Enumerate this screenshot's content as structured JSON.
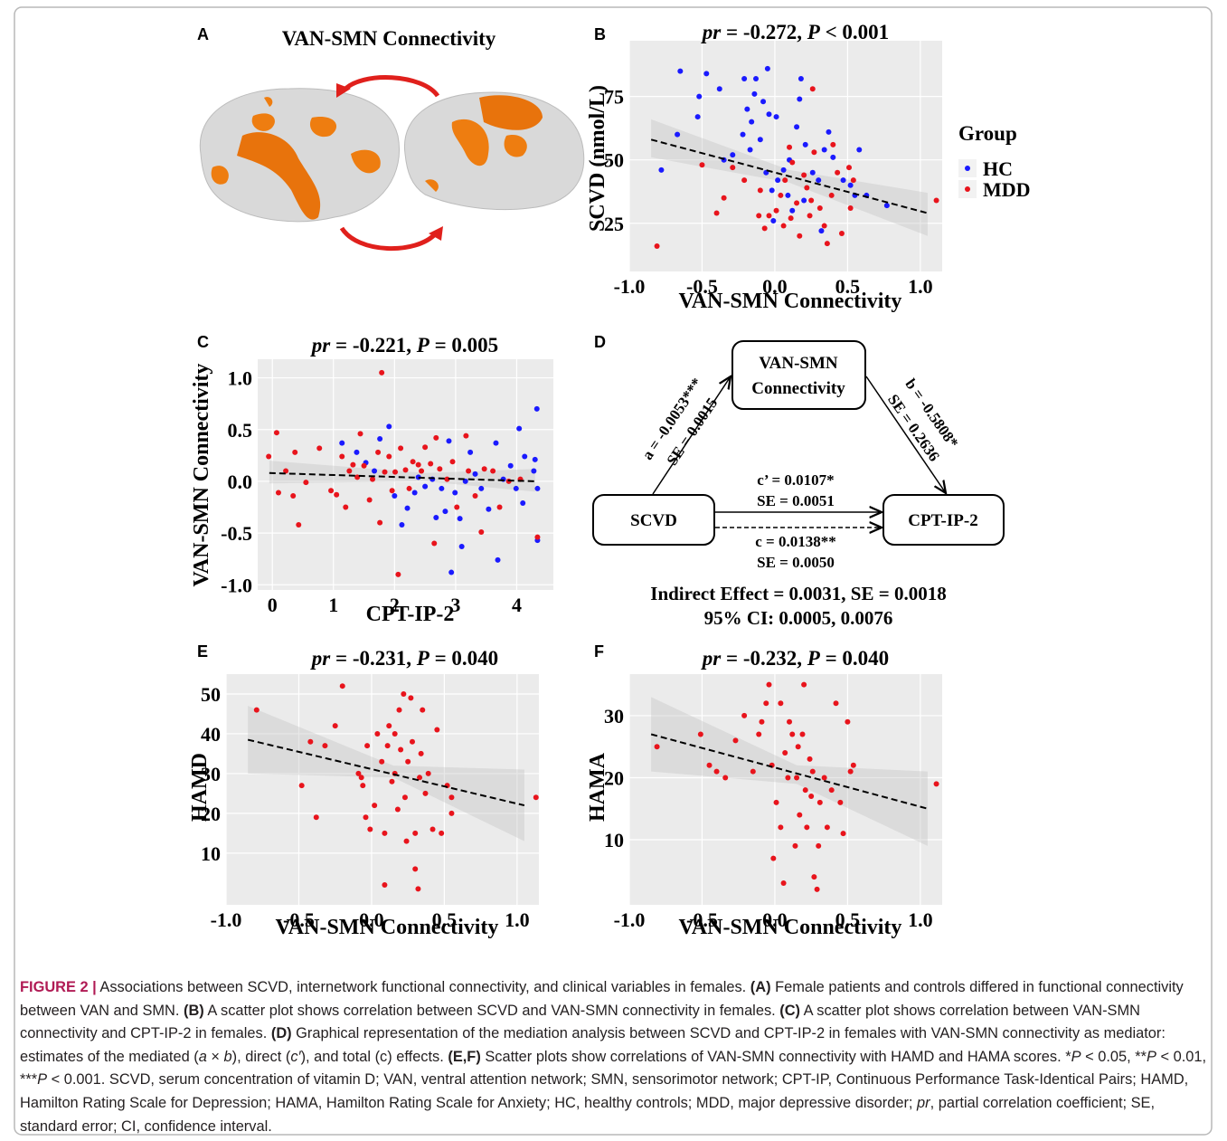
{
  "panel_a": {
    "panel": "A",
    "title": "VAN-SMN Connectivity"
  },
  "chart_data": [
    {
      "type": "scatter",
      "panel": "B",
      "title": [
        {
          "text": "pr",
          "italic": true
        },
        {
          "text": " = -0.272, "
        },
        {
          "text": "P",
          "italic": true
        },
        {
          "text": " < 0.001"
        }
      ],
      "xlabel": "VAN-SMN Connectivity",
      "ylabel": "SCVD (nmol/L)",
      "xlim": [
        -1,
        1.15
      ],
      "ylim": [
        6,
        97
      ],
      "xticks": [
        {
          "value": -1,
          "label": "-1.0"
        },
        {
          "value": -0.5,
          "label": "-0.5"
        },
        {
          "value": 0,
          "label": "0.0"
        },
        {
          "value": 0.5,
          "label": "0.5"
        },
        {
          "value": 1,
          "label": "1.0"
        }
      ],
      "yticks": [
        25,
        50,
        75
      ],
      "grid": true,
      "legend": {
        "title": "Group",
        "position": "right"
      },
      "series": [
        {
          "name": "HC",
          "color": "#1a1aff",
          "x": [
            -0.65,
            -0.47,
            -0.38,
            -0.52,
            -0.53,
            -0.67,
            -0.78,
            -0.21,
            -0.13,
            -0.05,
            -0.14,
            -0.08,
            -0.19,
            -0.16,
            -0.04,
            0.01,
            -0.22,
            -0.29,
            -0.35,
            -0.17,
            -0.1,
            -0.06,
            0.06,
            -0.02,
            -0.01,
            0.18,
            0.17,
            0.15,
            0.1,
            0.21,
            0.26,
            0.3,
            0.34,
            0.37,
            0.4,
            0.47,
            0.52,
            0.58,
            0.55,
            0.63,
            0.77,
            0.2,
            0.32,
            0.09,
            0.12,
            0.02
          ],
          "y": [
            85,
            84,
            78,
            75,
            67,
            60,
            46,
            82,
            82,
            86,
            76,
            73,
            70,
            65,
            68,
            67,
            60,
            52,
            50,
            54,
            58,
            45,
            46,
            38,
            26,
            82,
            74,
            63,
            50,
            56,
            45,
            42,
            54,
            61,
            51,
            42,
            40,
            54,
            36,
            36,
            32,
            34,
            22,
            36,
            30,
            42
          ]
        },
        {
          "name": "MDD",
          "color": "#e8141c",
          "x": [
            -0.81,
            -0.5,
            -0.4,
            -0.35,
            -0.29,
            -0.21,
            -0.1,
            -0.07,
            -0.04,
            0.01,
            0.04,
            0.07,
            0.1,
            0.12,
            0.15,
            0.17,
            0.2,
            0.22,
            0.24,
            0.26,
            0.27,
            0.31,
            0.34,
            0.39,
            0.4,
            0.43,
            0.46,
            0.51,
            0.54,
            0.52,
            1.11,
            0.06,
            0.11,
            0.25,
            0.36,
            -0.11
          ],
          "y": [
            16,
            48,
            29,
            35,
            47,
            42,
            38,
            23,
            28,
            30,
            36,
            42,
            55,
            49,
            33,
            20,
            44,
            39,
            28,
            78,
            53,
            31,
            24,
            36,
            56,
            45,
            21,
            47,
            42,
            31,
            34,
            24,
            27,
            34,
            17,
            28
          ]
        }
      ],
      "fit": {
        "x": [
          -0.85,
          1.05
        ],
        "y": [
          58,
          29
        ]
      },
      "band": {
        "x": [
          -0.85,
          0.1,
          1.05
        ],
        "lower": [
          51,
          41,
          20
        ],
        "upper": [
          66,
          46,
          37
        ]
      }
    },
    {
      "type": "scatter",
      "panel": "C",
      "title": [
        {
          "text": "pr",
          "italic": true
        },
        {
          "text": " = -0.221, "
        },
        {
          "text": "P",
          "italic": true
        },
        {
          "text": " = 0.005"
        }
      ],
      "xlabel": "CPT-IP-2",
      "ylabel": "VAN-SMN Connectivity",
      "xlim": [
        -0.24,
        4.6
      ],
      "ylim": [
        -1.05,
        1.18
      ],
      "xticks": [
        0,
        1,
        2,
        3,
        4
      ],
      "yticks": [
        {
          "value": -1,
          "label": "-1.0"
        },
        {
          "value": -0.5,
          "label": "-0.5"
        },
        {
          "value": 0,
          "label": "0.0"
        },
        {
          "value": 0.5,
          "label": "0.5"
        },
        {
          "value": 1,
          "label": "1.0"
        }
      ],
      "grid": true,
      "series": [
        {
          "color": "#1a1aff",
          "x": [
            1.14,
            1.38,
            1.53,
            1.67,
            1.76,
            1.91,
            2.0,
            2.12,
            2.21,
            2.33,
            2.39,
            2.5,
            2.62,
            2.68,
            2.77,
            2.83,
            2.89,
            2.93,
            2.99,
            3.07,
            3.1,
            3.16,
            3.24,
            3.32,
            3.42,
            3.54,
            3.66,
            3.69,
            3.78,
            3.9,
            3.99,
            4.04,
            4.1,
            4.13,
            4.28,
            4.33,
            4.34,
            4.34,
            4.3
          ],
          "y": [
            0.37,
            0.28,
            0.18,
            0.1,
            0.41,
            0.53,
            -0.14,
            -0.42,
            -0.26,
            -0.11,
            0.04,
            -0.05,
            0.02,
            -0.35,
            -0.07,
            -0.29,
            0.39,
            -0.88,
            -0.11,
            -0.36,
            -0.63,
            0,
            0.28,
            0.07,
            -0.07,
            -0.27,
            0.37,
            -0.76,
            0.02,
            0.15,
            -0.07,
            0.51,
            -0.21,
            0.24,
            0.1,
            0.7,
            -0.07,
            -0.57,
            0.21
          ]
        },
        {
          "color": "#e8141c",
          "x": [
            -0.06,
            0.07,
            0.1,
            0.22,
            0.34,
            0.37,
            0.43,
            0.55,
            0.77,
            0.96,
            1.05,
            1.14,
            1.2,
            1.26,
            1.32,
            1.39,
            1.44,
            1.5,
            1.59,
            1.64,
            1.73,
            1.76,
            1.79,
            1.84,
            1.91,
            1.96,
            2.01,
            2.06,
            2.1,
            2.18,
            2.24,
            2.3,
            2.39,
            2.44,
            2.5,
            2.59,
            2.65,
            2.68,
            2.74,
            2.86,
            2.95,
            3.02,
            3.17,
            3.21,
            3.32,
            3.42,
            3.47,
            3.61,
            3.72,
            3.87,
            4.06,
            4.34
          ],
          "y": [
            0.24,
            0.47,
            -0.11,
            0.1,
            -0.14,
            0.28,
            -0.42,
            -0.01,
            0.32,
            -0.09,
            -0.13,
            0.24,
            -0.25,
            0.1,
            0.16,
            0.04,
            0.46,
            0.15,
            -0.18,
            0.02,
            0.28,
            -0.4,
            1.05,
            0.09,
            0.24,
            -0.09,
            0.09,
            -0.9,
            0.32,
            0.11,
            -0.07,
            0.19,
            0.16,
            0.1,
            0.33,
            0.17,
            -0.6,
            0.42,
            0.12,
            0.02,
            0.19,
            -0.25,
            0.44,
            0.1,
            -0.14,
            -0.49,
            0.12,
            0.1,
            -0.25,
            0,
            0.02,
            -0.54
          ]
        }
      ],
      "fit": {
        "x": [
          -0.05,
          4.3
        ],
        "y": [
          0.08,
          0.0
        ]
      },
      "band": {
        "x": [
          -0.05,
          2.5,
          4.3
        ],
        "lower": [
          -0.02,
          0.0,
          -0.1
        ],
        "upper": [
          0.2,
          0.08,
          0.12
        ]
      }
    },
    {
      "type": "scatter",
      "panel": "E",
      "title": [
        {
          "text": "pr",
          "italic": true
        },
        {
          "text": " = -0.231, "
        },
        {
          "text": "P",
          "italic": true
        },
        {
          "text": " = 0.040"
        }
      ],
      "xlabel": "VAN-SMN Connectivity",
      "ylabel": "HAMD",
      "xlim": [
        -1,
        1.15
      ],
      "ylim": [
        -3,
        55
      ],
      "xticks": [
        {
          "value": -1,
          "label": "-1.0"
        },
        {
          "value": -0.5,
          "label": "-0.5"
        },
        {
          "value": 0,
          "label": "0.0"
        },
        {
          "value": 0.5,
          "label": "0.5"
        },
        {
          "value": 1,
          "label": "1.0"
        }
      ],
      "yticks": [
        10,
        20,
        30,
        40,
        50
      ],
      "grid": true,
      "series": [
        {
          "color": "#e8141c",
          "x": [
            -0.79,
            -0.48,
            -0.42,
            -0.38,
            -0.32,
            -0.25,
            -0.2,
            -0.09,
            -0.07,
            -0.06,
            -0.04,
            -0.03,
            -0.01,
            0.02,
            0.04,
            0.07,
            0.09,
            0.09,
            0.12,
            0.14,
            0.16,
            0.18,
            0.19,
            0.2,
            0.22,
            0.23,
            0.24,
            0.25,
            0.27,
            0.28,
            0.3,
            0.3,
            0.32,
            0.33,
            0.34,
            0.35,
            0.37,
            0.39,
            0.42,
            0.45,
            0.48,
            0.52,
            0.55,
            0.55,
            1.13,
            0.16,
            0.11
          ],
          "y": [
            46,
            27,
            38,
            19,
            37,
            42,
            52,
            30,
            29,
            27,
            19,
            37,
            16,
            22,
            40,
            33,
            2,
            15,
            42,
            28,
            30,
            21,
            46,
            36,
            50,
            24,
            13,
            33,
            49,
            38,
            6,
            15,
            1,
            29,
            35,
            46,
            25,
            30,
            16,
            41,
            15,
            27,
            24,
            20,
            24,
            40,
            37
          ]
        }
      ],
      "fit": {
        "x": [
          -0.85,
          1.05
        ],
        "y": [
          38.5,
          22
        ]
      },
      "band": {
        "x": [
          -0.85,
          0.15,
          1.05
        ],
        "lower": [
          30,
          29,
          13
        ],
        "upper": [
          47,
          32,
          31
        ]
      }
    },
    {
      "type": "scatter",
      "panel": "F",
      "title": [
        {
          "text": "pr",
          "italic": true
        },
        {
          "text": " = -0.232, "
        },
        {
          "text": "P",
          "italic": true
        },
        {
          "text": " = 0.040"
        }
      ],
      "xlabel": "VAN-SMN Connectivity",
      "ylabel": "HAMA",
      "xlim": [
        -1,
        1.15
      ],
      "ylim": [
        -0.5,
        36.7
      ],
      "xticks": [
        {
          "value": -1,
          "label": "-1.0"
        },
        {
          "value": -0.5,
          "label": "-0.5"
        },
        {
          "value": 0,
          "label": "0.0"
        },
        {
          "value": 0.5,
          "label": "0.5"
        },
        {
          "value": 1,
          "label": "1.0"
        }
      ],
      "yticks": [
        10,
        20,
        30
      ],
      "grid": true,
      "series": [
        {
          "color": "#e8141c",
          "x": [
            -0.81,
            -0.51,
            -0.45,
            -0.4,
            -0.34,
            -0.27,
            -0.21,
            -0.15,
            -0.11,
            -0.09,
            -0.06,
            -0.04,
            -0.02,
            -0.01,
            0.01,
            0.04,
            0.06,
            0.07,
            0.09,
            0.1,
            0.12,
            0.14,
            0.15,
            0.16,
            0.17,
            0.19,
            0.2,
            0.21,
            0.22,
            0.24,
            0.25,
            0.26,
            0.27,
            0.29,
            0.3,
            0.31,
            0.34,
            0.36,
            0.39,
            0.42,
            0.45,
            0.47,
            0.5,
            0.52,
            0.54,
            1.11,
            0.04
          ],
          "y": [
            25,
            27,
            22,
            21,
            20,
            26,
            30,
            21,
            27,
            29,
            32,
            35,
            22,
            7,
            16,
            12,
            3,
            24,
            20,
            29,
            27,
            9,
            20,
            25,
            14,
            27,
            35,
            18,
            12,
            23,
            17,
            21,
            4,
            2,
            9,
            16,
            20,
            12,
            18,
            32,
            16,
            11,
            29,
            21,
            22,
            19,
            32
          ]
        }
      ],
      "fit": {
        "x": [
          -0.85,
          1.05
        ],
        "y": [
          27,
          15
        ]
      },
      "band": {
        "x": [
          -0.85,
          0.15,
          1.05
        ],
        "lower": [
          21,
          19,
          9
        ],
        "upper": [
          33,
          22,
          21
        ]
      }
    }
  ],
  "diagram": {
    "panel": "D",
    "nodes": [
      {
        "label": [
          "VAN-SMN",
          "Connectivity"
        ]
      },
      {
        "label": "SCVD"
      },
      {
        "label": "CPT-IP-2"
      }
    ],
    "edges": [
      {
        "label": "a = -0.0053***",
        "se": "SE = 0.0015"
      },
      {
        "label": "b = -0.5808*",
        "se": "SE = 0.2636"
      },
      {
        "label": "c’ = 0.0107*",
        "se": "SE = 0.0051"
      },
      {
        "label": "c = 0.0138**",
        "se": "SE = 0.0050"
      }
    ],
    "summary": [
      "Indirect Effect = 0.0031, SE = 0.0018",
      "95% CI: 0.0005, 0.0076"
    ]
  },
  "caption": [
    {
      "text": "FIGURE 2 |",
      "bold": true,
      "color": "#b01a54"
    },
    {
      "text": " Associations between SCVD, internetwork functional connectivity, and clinical variables in females. "
    },
    {
      "text": "(A)",
      "bold": true
    },
    {
      "text": " Female patients and controls differed in functional connectivity between VAN and SMN. "
    },
    {
      "text": "(B)",
      "bold": true
    },
    {
      "text": " A scatter plot shows correlation between SCVD and VAN-SMN connectivity in females. "
    },
    {
      "text": "(C)",
      "bold": true
    },
    {
      "text": " A scatter plot shows correlation between VAN-SMN connectivity and CPT-IP-2 in females. "
    },
    {
      "text": "(D)",
      "bold": true
    },
    {
      "text": " Graphical representation of the mediation analysis between SCVD and CPT-IP-2 in females with VAN-SMN connectivity as mediator: estimates of the mediated ("
    },
    {
      "text": "a",
      "italic": true
    },
    {
      "text": " × "
    },
    {
      "text": "b",
      "italic": true
    },
    {
      "text": "), direct ("
    },
    {
      "text": "c′",
      "italic": true
    },
    {
      "text": "), and total (c) effects. "
    },
    {
      "text": "(E,F)",
      "bold": true
    },
    {
      "text": " Scatter plots show correlations of VAN-SMN connectivity with HAMD and HAMA scores. *"
    },
    {
      "text": "P",
      "italic": true
    },
    {
      "text": " < 0.05, **"
    },
    {
      "text": "P",
      "italic": true
    },
    {
      "text": " < 0.01, ***"
    },
    {
      "text": "P",
      "italic": true
    },
    {
      "text": " < 0.001. SCVD, serum concentration of vitamin D; VAN, ventral attention network; SMN, sensorimotor network; CPT-IP, Continuous Performance Task-Identical Pairs; HAMD, Hamilton Rating Scale for Depression; HAMA, Hamilton Rating Scale for Anxiety; HC, healthy controls; MDD, major depressive disorder; "
    },
    {
      "text": "pr",
      "italic": true
    },
    {
      "text": ", partial correlation coefficient; SE, standard error; CI, confidence interval."
    }
  ]
}
